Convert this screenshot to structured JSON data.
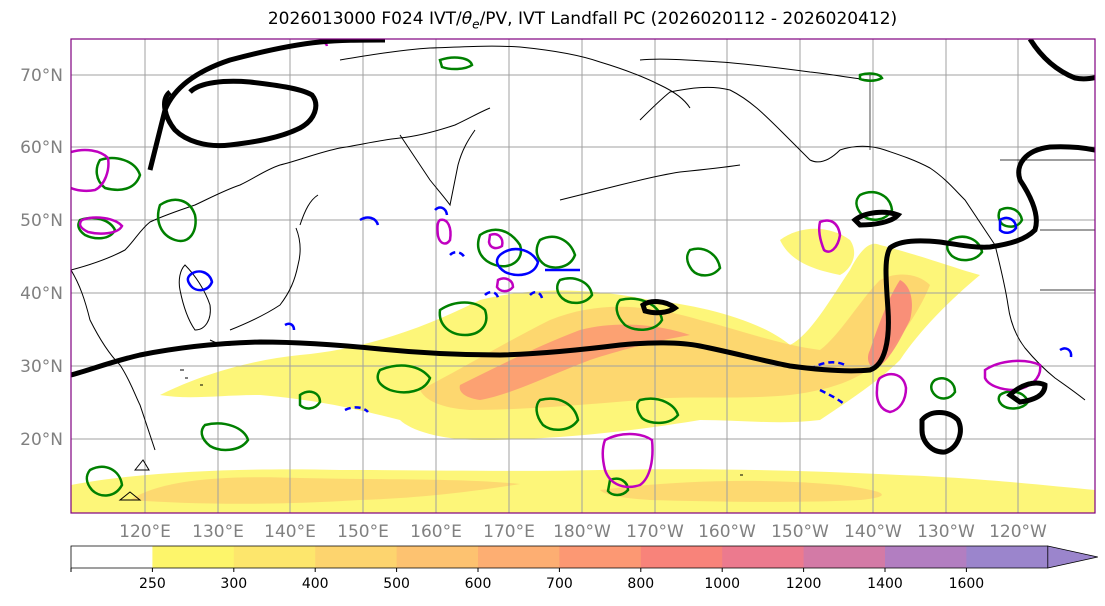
{
  "title_main": "2026013000 F024 IVT/",
  "title_theta": "θ",
  "title_theta_sub": "e",
  "title_rest": "/PV, IVT Landfall PC (2026020112 - 2026020412)",
  "lat_labels": [
    "70°N",
    "60°N",
    "50°N",
    "40°N",
    "30°N",
    "20°N"
  ],
  "lon_labels": [
    "120°E",
    "130°E",
    "140°E",
    "150°E",
    "160°E",
    "170°E",
    "180°W",
    "170°W",
    "160°W",
    "150°W",
    "140°W",
    "130°W",
    "120°W"
  ],
  "colorbar": {
    "ticks": [
      "250",
      "300",
      "400",
      "500",
      "600",
      "700",
      "800",
      "1000",
      "1200",
      "1400",
      "1600"
    ],
    "colors": [
      "#ffffff",
      "#fdf56a",
      "#fde66c",
      "#fdd46e",
      "#fdc270",
      "#fdae72",
      "#fc9873",
      "#f8837a",
      "#ec7a8e",
      "#d37aa6",
      "#b27ec1",
      "#9b85cc"
    ],
    "extend": "max"
  },
  "legend_colors": {
    "ivt_fill_low": "#fdf56a",
    "ivt_fill_high": "#f8837a",
    "landfall_contour": "#000000",
    "pv_green": "#008000",
    "pv_blue": "#0000ff",
    "theta_magenta": "#c000c0",
    "grid": "#a0a0a0",
    "frame": "#800080"
  }
}
